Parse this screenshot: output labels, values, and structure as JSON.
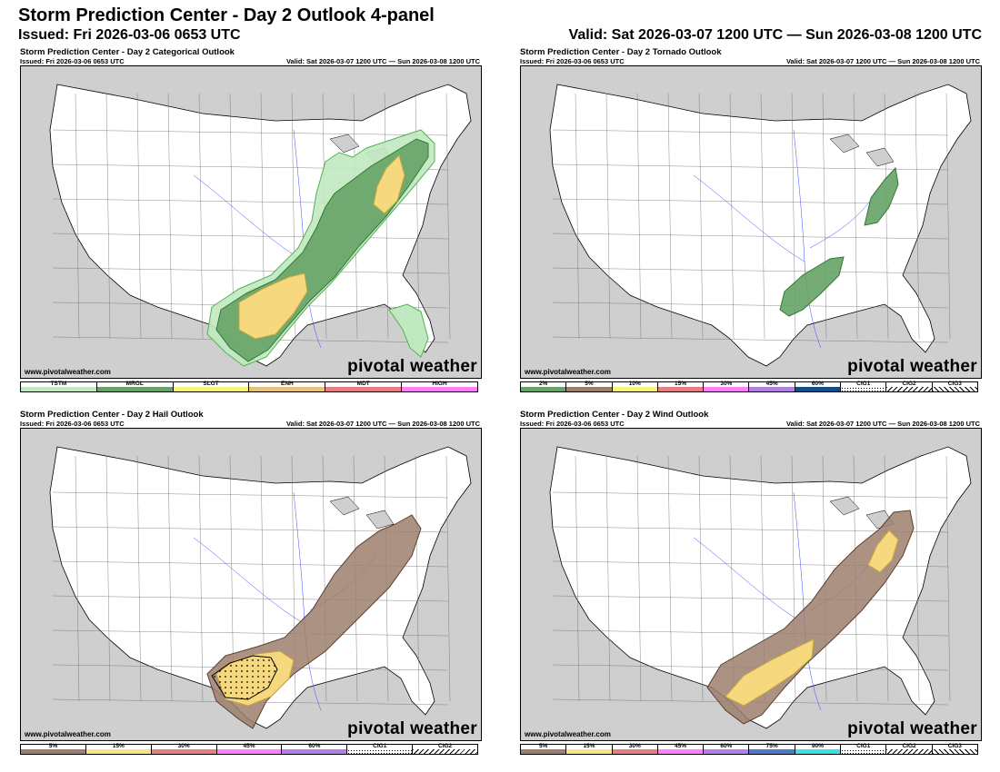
{
  "header": {
    "title": "Storm Prediction Center - Day 2 Outlook 4-panel",
    "issued": "Issued: Fri 2026-03-06 0653 UTC",
    "valid": "Valid: Sat 2026-03-07 1200 UTC — Sun 2026-03-08 1200 UTC"
  },
  "panels": [
    {
      "title": "Storm Prediction Center - Day 2 Categorical Outlook",
      "issued": "Issued: Fri 2026-03-06 0653 UTC",
      "valid": "Valid: Sat 2026-03-07 1200 UTC — Sun 2026-03-08 1200 UTC",
      "site": "www.pivotalweather.com",
      "logo": "pivotal weather",
      "legend": [
        {
          "label": "TSTM",
          "color": "#c1e9c1"
        },
        {
          "label": "MRGL",
          "color": "#66a366"
        },
        {
          "label": "SLGT",
          "color": "#f6f67f"
        },
        {
          "label": "ENH",
          "color": "#e6c27a"
        },
        {
          "label": "MDT",
          "color": "#e67f7f"
        },
        {
          "label": "HIGH",
          "color": "#ff80ff"
        }
      ],
      "risk_areas": [
        "TSTM",
        "MRGL",
        "SLGT"
      ]
    },
    {
      "title": "Storm Prediction Center - Day 2 Tornado Outlook",
      "issued": "Issued: Fri 2026-03-06 0653 UTC",
      "valid": "Valid: Sat 2026-03-07 1200 UTC — Sun 2026-03-08 1200 UTC",
      "site": "www.pivotalweather.com",
      "logo": "pivotal weather",
      "legend": [
        {
          "label": "2%",
          "color": "#66a366"
        },
        {
          "label": "5%",
          "color": "#9d7f6d"
        },
        {
          "label": "10%",
          "color": "#f6f67f"
        },
        {
          "label": "15%",
          "color": "#e67f7f"
        },
        {
          "label": "30%",
          "color": "#ff80ff"
        },
        {
          "label": "45%",
          "color": "#b580e6"
        },
        {
          "label": "60%",
          "color": "#104e8b"
        },
        {
          "label": "CIG1",
          "color": "dots"
        },
        {
          "label": "CIG2",
          "color": "hatch"
        },
        {
          "label": "CIG3",
          "color": "hatch2"
        }
      ],
      "risk_areas": [
        "2%"
      ]
    },
    {
      "title": "Storm Prediction Center - Day 2 Hail Outlook",
      "issued": "Issued: Fri 2026-03-06 0653 UTC",
      "valid": "Valid: Sat 2026-03-07 1200 UTC — Sun 2026-03-08 1200 UTC",
      "site": "www.pivotalweather.com",
      "logo": "pivotal weather",
      "legend": [
        {
          "label": "5%",
          "color": "#9d7f6d"
        },
        {
          "label": "15%",
          "color": "#f6e57f"
        },
        {
          "label": "30%",
          "color": "#e67f7f"
        },
        {
          "label": "45%",
          "color": "#ff80ff"
        },
        {
          "label": "60%",
          "color": "#b580e6"
        },
        {
          "label": "CIG1",
          "color": "dots"
        },
        {
          "label": "CIG2",
          "color": "hatch"
        }
      ],
      "risk_areas": [
        "5%",
        "15%",
        "CIG1"
      ]
    },
    {
      "title": "Storm Prediction Center - Day 2 Wind Outlook",
      "issued": "Issued: Fri 2026-03-06 0653 UTC",
      "valid": "Valid: Sat 2026-03-07 1200 UTC — Sun 2026-03-08 1200 UTC",
      "site": "www.pivotalweather.com",
      "logo": "pivotal weather",
      "legend": [
        {
          "label": "5%",
          "color": "#9d7f6d"
        },
        {
          "label": "15%",
          "color": "#f6e57f"
        },
        {
          "label": "30%",
          "color": "#e67f7f"
        },
        {
          "label": "45%",
          "color": "#ff80ff"
        },
        {
          "label": "60%",
          "color": "#b580e6"
        },
        {
          "label": "75%",
          "color": "#5078c8"
        },
        {
          "label": "90%",
          "color": "#33e6e6"
        },
        {
          "label": "CIG1",
          "color": "dots"
        },
        {
          "label": "CIG2",
          "color": "hatch"
        },
        {
          "label": "CIG3",
          "color": "hatch2"
        }
      ],
      "risk_areas": [
        "5%",
        "15%"
      ]
    }
  ]
}
